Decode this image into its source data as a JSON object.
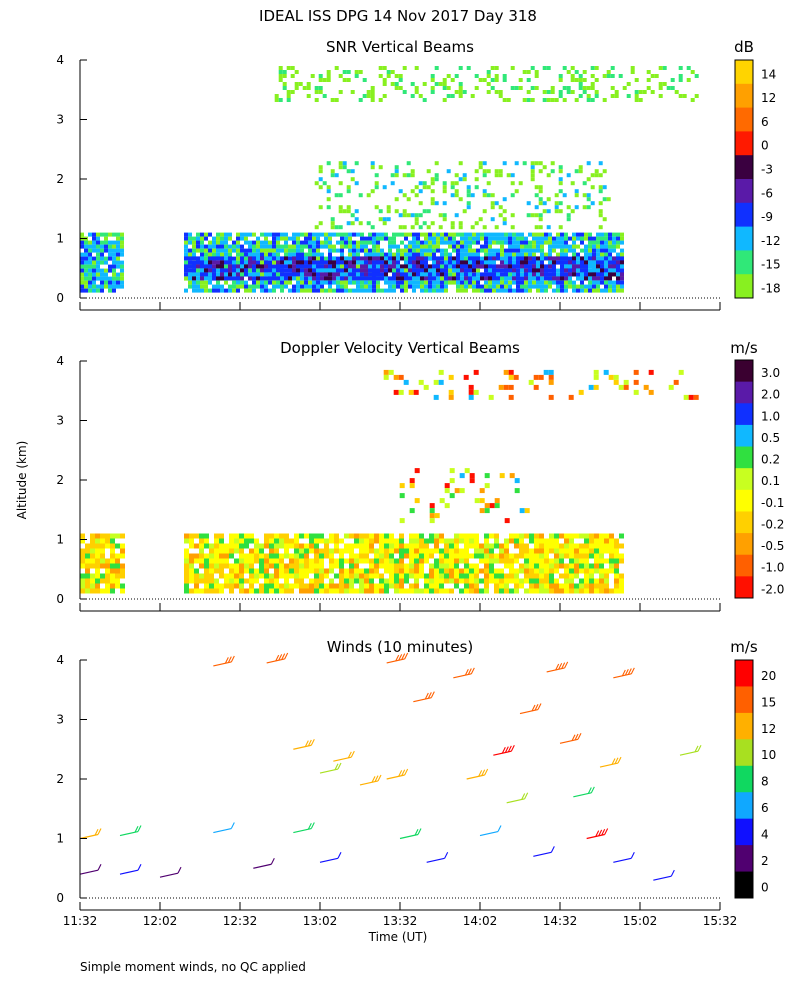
{
  "title": "IDEAL ISS DPG  14 Nov 2017 Day 318",
  "ylabel": "Altitude (km)",
  "xlabel": "Time (UT)",
  "x_ticks": [
    "11:32",
    "12:02",
    "12:32",
    "13:02",
    "13:32",
    "14:02",
    "14:32",
    "15:02",
    "15:32"
  ],
  "y_ticks": [
    "0",
    "1",
    "2",
    "3",
    "4"
  ],
  "footnote": "Simple moment winds, no QC applied",
  "chart_data": [
    {
      "type": "heatmap",
      "title": "SNR Vertical Beams",
      "xlabel": "Time (UT)",
      "ylabel": "Altitude (km)",
      "x_range": [
        "11:32",
        "15:32"
      ],
      "ylim": [
        0,
        4
      ],
      "colorbar": {
        "unit": "dB",
        "labels": [
          "14",
          "12",
          "6",
          "0",
          "-3",
          "-6",
          "-9",
          "-12",
          "-15",
          "-18"
        ],
        "colors": [
          "#ffd400",
          "#ffa000",
          "#ff6a00",
          "#ff1a00",
          "#3a0040",
          "#5a1aa8",
          "#1030ff",
          "#10b8ff",
          "#30e878",
          "#88f020"
        ]
      },
      "regions": [
        {
          "t0": "11:32",
          "t1": "11:48",
          "h0": 0.15,
          "h1": 1.1,
          "dominant_db": -12
        },
        {
          "t0": "12:11",
          "t1": "14:56",
          "h0": 0.15,
          "h1": 1.1,
          "dominant_db": -9
        },
        {
          "t0": "12:11",
          "t1": "14:56",
          "h0": 0.3,
          "h1": 0.7,
          "dominant_db": -6
        },
        {
          "t0": "12:45",
          "t1": "15:24",
          "h0": 3.3,
          "h1": 3.9,
          "dominant_db": -18
        },
        {
          "t0": "13:00",
          "t1": "14:50",
          "h0": 1.2,
          "h1": 2.3,
          "dominant_db": -18
        }
      ]
    },
    {
      "type": "heatmap",
      "title": "Doppler Velocity Vertical Beams",
      "xlabel": "Time (UT)",
      "ylabel": "Altitude (km)",
      "x_range": [
        "11:32",
        "15:32"
      ],
      "ylim": [
        0,
        4
      ],
      "colorbar": {
        "unit": "m/s",
        "labels": [
          "3.0",
          "2.0",
          "1.0",
          "0.5",
          "0.2",
          "0.1",
          "-0.1",
          "-0.2",
          "-0.5",
          "-1.0",
          "-2.0"
        ],
        "colors": [
          "#3a0030",
          "#5a1aa8",
          "#1030ff",
          "#10b8ff",
          "#30e040",
          "#c8ff20",
          "#ffff00",
          "#ffd000",
          "#ffa000",
          "#ff6000",
          "#ff1000"
        ]
      },
      "regions": [
        {
          "t0": "11:32",
          "t1": "11:48",
          "h0": 0.15,
          "h1": 1.1,
          "dominant_ms": -0.1
        },
        {
          "t0": "12:11",
          "t1": "14:56",
          "h0": 0.15,
          "h1": 1.1,
          "dominant_ms": -0.1
        },
        {
          "t0": "13:24",
          "t1": "15:24",
          "h0": 3.4,
          "h1": 3.85,
          "dominant_ms": -0.5
        },
        {
          "t0": "13:30",
          "t1": "14:20",
          "h0": 1.3,
          "h1": 2.2,
          "dominant_ms": -0.2
        }
      ]
    },
    {
      "type": "wind_barbs",
      "title": "Winds (10 minutes)",
      "xlabel": "Time (UT)",
      "ylabel": "Altitude (km)",
      "x_range": [
        "11:32",
        "15:32"
      ],
      "ylim": [
        0,
        4
      ],
      "colorbar": {
        "unit": "m/s",
        "labels": [
          "20",
          "15",
          "12",
          "10",
          "8",
          "6",
          "4",
          "2",
          "0"
        ],
        "colors": [
          "#ff0000",
          "#ff6000",
          "#ffb000",
          "#a8e020",
          "#10d860",
          "#10a8ff",
          "#1010ff",
          "#500070",
          "#000000"
        ]
      },
      "barbs": [
        {
          "t": "11:32",
          "alt": 0.4,
          "speed_ms": 3
        },
        {
          "t": "11:32",
          "alt": 1.0,
          "speed_ms": 12
        },
        {
          "t": "11:47",
          "alt": 0.4,
          "speed_ms": 4
        },
        {
          "t": "11:47",
          "alt": 1.05,
          "speed_ms": 9
        },
        {
          "t": "12:02",
          "alt": 0.35,
          "speed_ms": 2
        },
        {
          "t": "12:22",
          "alt": 1.1,
          "speed_ms": 6
        },
        {
          "t": "12:22",
          "alt": 3.9,
          "speed_ms": 17
        },
        {
          "t": "12:37",
          "alt": 0.5,
          "speed_ms": 3
        },
        {
          "t": "12:42",
          "alt": 3.95,
          "speed_ms": 18
        },
        {
          "t": "12:52",
          "alt": 2.5,
          "speed_ms": 13
        },
        {
          "t": "12:52",
          "alt": 1.1,
          "speed_ms": 9
        },
        {
          "t": "13:02",
          "alt": 2.1,
          "speed_ms": 11
        },
        {
          "t": "13:02",
          "alt": 0.6,
          "speed_ms": 5
        },
        {
          "t": "13:07",
          "alt": 2.3,
          "speed_ms": 12
        },
        {
          "t": "13:17",
          "alt": 1.9,
          "speed_ms": 14
        },
        {
          "t": "13:27",
          "alt": 3.95,
          "speed_ms": 19
        },
        {
          "t": "13:27",
          "alt": 2.0,
          "speed_ms": 13
        },
        {
          "t": "13:32",
          "alt": 1.0,
          "speed_ms": 9
        },
        {
          "t": "13:37",
          "alt": 3.3,
          "speed_ms": 16
        },
        {
          "t": "13:42",
          "alt": 0.6,
          "speed_ms": 4
        },
        {
          "t": "13:52",
          "alt": 3.7,
          "speed_ms": 17
        },
        {
          "t": "13:57",
          "alt": 2.0,
          "speed_ms": 13
        },
        {
          "t": "14:02",
          "alt": 1.05,
          "speed_ms": 7
        },
        {
          "t": "14:07",
          "alt": 2.4,
          "speed_ms": 20
        },
        {
          "t": "14:12",
          "alt": 1.6,
          "speed_ms": 11
        },
        {
          "t": "14:17",
          "alt": 3.1,
          "speed_ms": 17
        },
        {
          "t": "14:22",
          "alt": 0.7,
          "speed_ms": 4
        },
        {
          "t": "14:27",
          "alt": 3.8,
          "speed_ms": 19
        },
        {
          "t": "14:32",
          "alt": 2.6,
          "speed_ms": 15
        },
        {
          "t": "14:37",
          "alt": 1.7,
          "speed_ms": 9
        },
        {
          "t": "14:42",
          "alt": 1.0,
          "speed_ms": 20
        },
        {
          "t": "14:47",
          "alt": 2.2,
          "speed_ms": 14
        },
        {
          "t": "14:52",
          "alt": 3.7,
          "speed_ms": 18
        },
        {
          "t": "14:52",
          "alt": 0.6,
          "speed_ms": 4
        },
        {
          "t": "15:07",
          "alt": 0.3,
          "speed_ms": 4
        },
        {
          "t": "15:17",
          "alt": 2.4,
          "speed_ms": 11
        }
      ]
    }
  ]
}
